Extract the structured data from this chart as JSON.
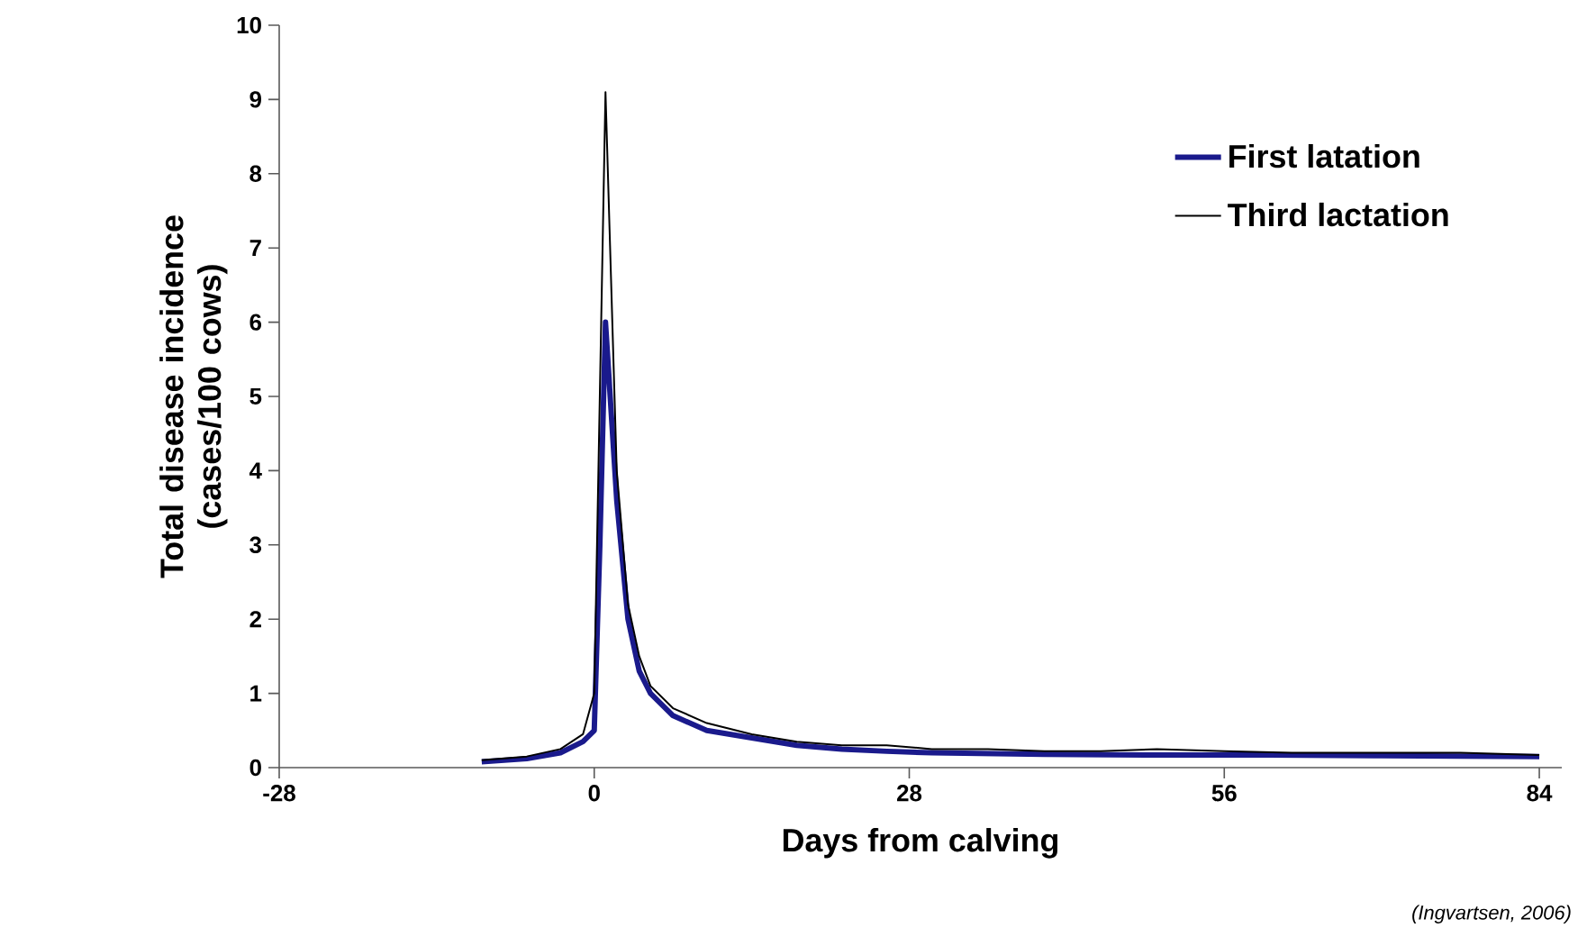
{
  "chart_data": {
    "type": "line",
    "xlabel": "Days from calving",
    "ylabel": "Total disease incidence (cases/100 cows)",
    "xlim": [
      -28,
      86
    ],
    "xticks": [
      -28,
      0,
      28,
      56,
      84
    ],
    "ylim": [
      0,
      10
    ],
    "yticks": [
      0,
      1,
      2,
      3,
      4,
      5,
      6,
      7,
      8,
      9,
      10
    ],
    "grid": false,
    "legend": "top right",
    "marker": "none",
    "line_style": "solid",
    "annotations": [
      "(Ingvartsen, 2006)"
    ],
    "series": [
      {
        "name": "First latation",
        "color": "#1a1a8c",
        "x": [
          -10,
          -6,
          -3,
          -1,
          0,
          0.5,
          1,
          2,
          3,
          4,
          5,
          7,
          10,
          14,
          18,
          22,
          26,
          30,
          40,
          50,
          60,
          70,
          84
        ],
        "values": [
          0.08,
          0.12,
          0.2,
          0.35,
          0.5,
          3,
          6.0,
          3.6,
          2,
          1.3,
          1.0,
          0.7,
          0.5,
          0.4,
          0.3,
          0.25,
          0.22,
          0.2,
          0.18,
          0.17,
          0.17,
          0.16,
          0.15
        ]
      },
      {
        "name": "Third lactation",
        "color": "#000000",
        "x": [
          -10,
          -6,
          -3,
          -1,
          0,
          1,
          2,
          3,
          4,
          5,
          7,
          10,
          14,
          18,
          22,
          26,
          30,
          35,
          40,
          45,
          50,
          56,
          62,
          70,
          77,
          84
        ],
        "values": [
          0.1,
          0.15,
          0.25,
          0.45,
          1.0,
          9.1,
          4,
          2.2,
          1.5,
          1.1,
          0.8,
          0.6,
          0.45,
          0.35,
          0.3,
          0.3,
          0.25,
          0.25,
          0.22,
          0.22,
          0.25,
          0.22,
          0.2,
          0.2,
          0.2,
          0.17
        ]
      }
    ]
  }
}
